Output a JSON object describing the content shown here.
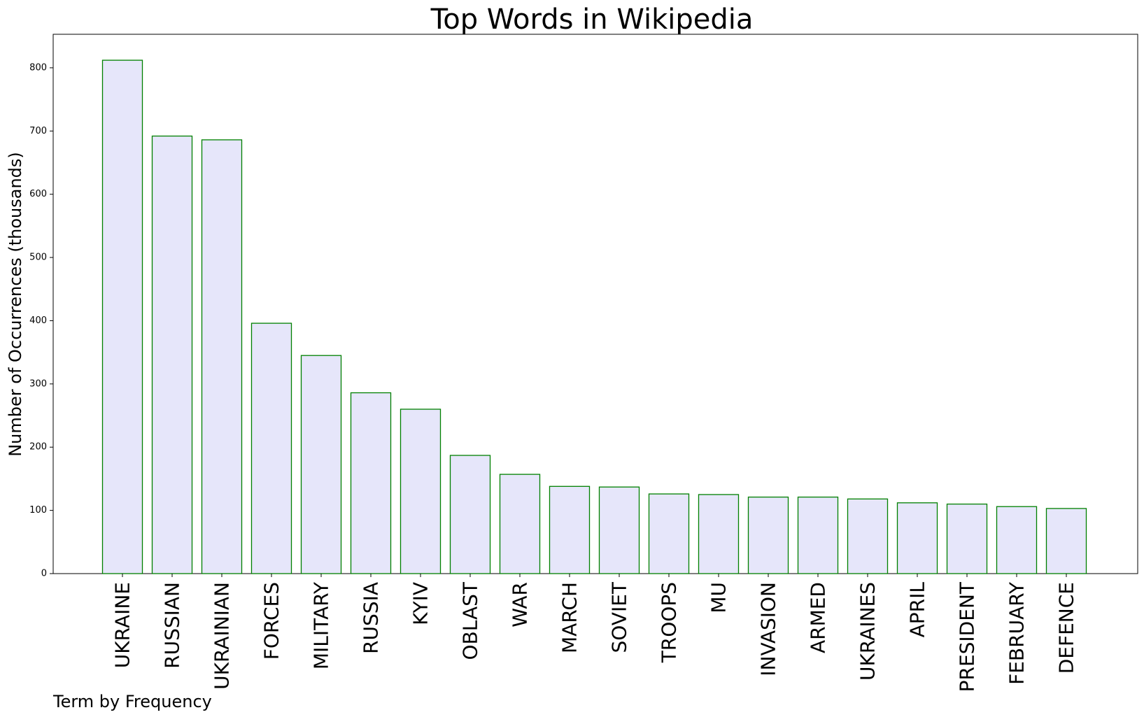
{
  "chart_data": {
    "type": "bar",
    "title": "Top Words in Wikipedia",
    "xlabel": "Term by Frequency",
    "ylabel": "Number of Occurrences (thousands)",
    "categories": [
      "UKRAINE",
      "RUSSIAN",
      "UKRAINIAN",
      "FORCES",
      "MILITARY",
      "RUSSIA",
      "KYIV",
      "OBLAST",
      "WAR",
      "MARCH",
      "SOVIET",
      "TROOPS",
      "MU",
      "INVASION",
      "ARMED",
      "UKRAINES",
      "APRIL",
      "PRESIDENT",
      "FEBRUARY",
      "DEFENCE"
    ],
    "values": [
      812,
      692,
      686,
      396,
      345,
      286,
      260,
      187,
      157,
      138,
      137,
      126,
      125,
      121,
      121,
      118,
      112,
      110,
      106,
      103
    ],
    "ylim": [
      0,
      853
    ],
    "yticks": [
      0,
      100,
      200,
      300,
      400,
      500,
      600,
      700,
      800
    ],
    "grid": false,
    "bar_fill": "#e6e6fa",
    "bar_edge": "#008000"
  }
}
